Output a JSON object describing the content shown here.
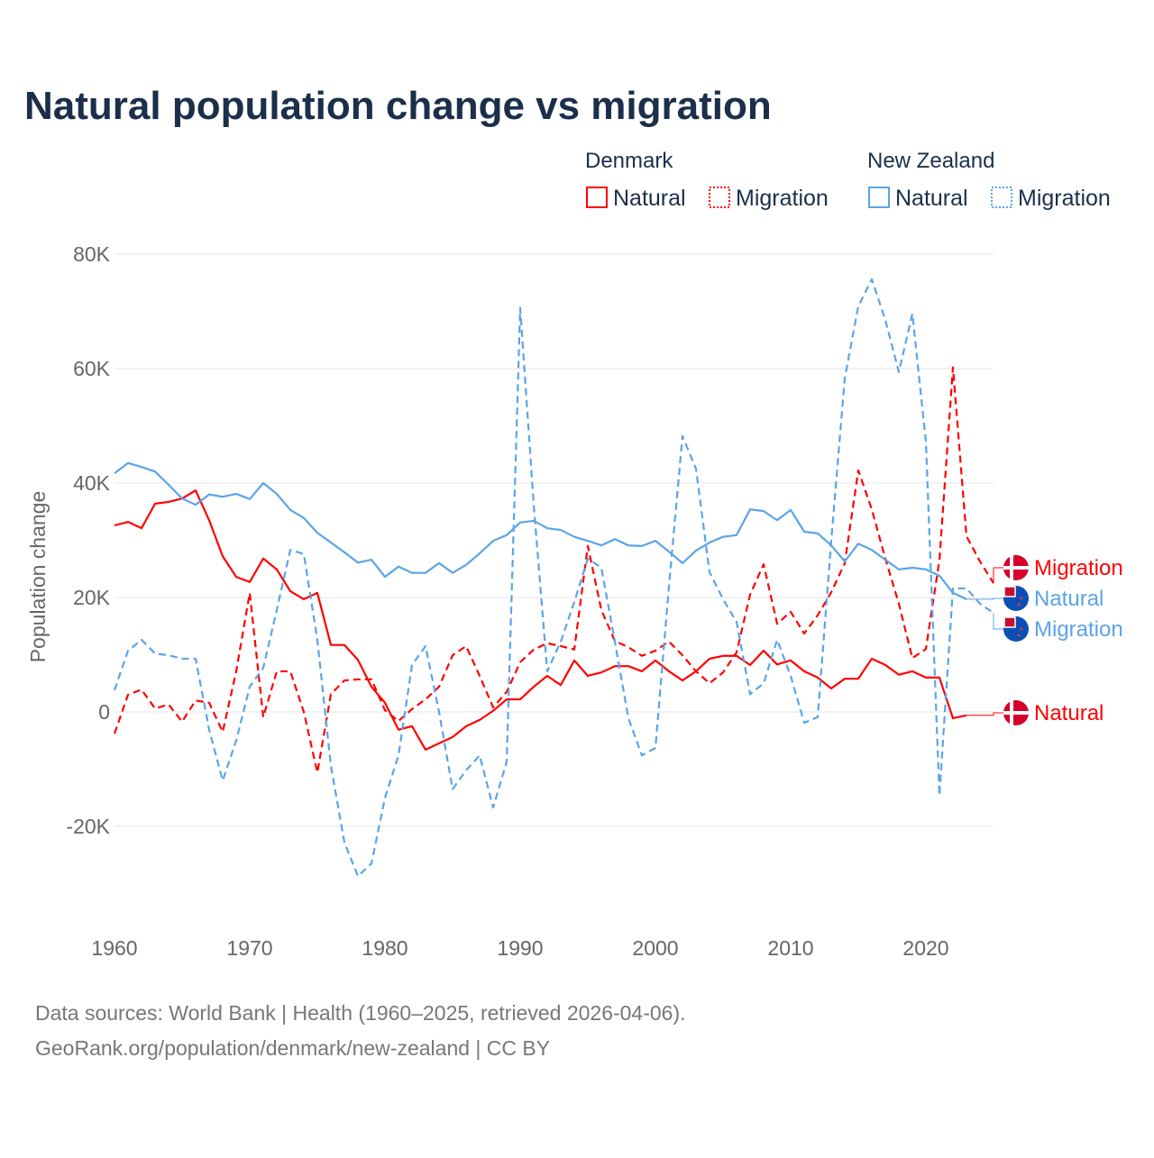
{
  "title": "Natural population change vs migration",
  "legend": {
    "groups": [
      {
        "name": "Denmark",
        "items": [
          "Natural",
          "Migration"
        ],
        "color": "#ff0000"
      },
      {
        "name": "New Zealand",
        "items": [
          "Natural",
          "Migration"
        ],
        "color": "#5ba4e8"
      }
    ]
  },
  "footer": {
    "line1": "Data sources: World Bank | Health (1960–2025, retrieved 2026-04-06).",
    "line2": "GeoRank.org/population/denmark/new-zealand | CC BY"
  },
  "chart_data": {
    "type": "line",
    "title": "Natural population change vs migration",
    "xlabel": "",
    "ylabel": "Population change",
    "xlim": [
      1960,
      2025
    ],
    "ylim": [
      -30000,
      80000
    ],
    "x_ticks": [
      1960,
      1970,
      1980,
      1990,
      2000,
      2010,
      2020
    ],
    "x_tick_labels": [
      "1960",
      "1970",
      "1980",
      "1990",
      "2000",
      "2010",
      "2020"
    ],
    "y_ticks": [
      -20000,
      0,
      20000,
      40000,
      60000,
      80000
    ],
    "y_tick_labels": [
      "-20K",
      "0",
      "20K",
      "40K",
      "60K",
      "80K"
    ],
    "grid": true,
    "legend_position": "top-right",
    "start_year": 1960,
    "series": [
      {
        "name": "Denmark Natural",
        "label": "Natural",
        "country": "Denmark",
        "color": "#ff0000",
        "dashed": false,
        "values": [
          32.6,
          33.2,
          32.1,
          36.4,
          36.7,
          37.3,
          38.7,
          33.5,
          27.2,
          23.6,
          22.7,
          26.8,
          24.9,
          21.1,
          19.7,
          20.8,
          11.7,
          11.7,
          9.1,
          4.4,
          1.6,
          -3.1,
          -2.5,
          -6.6,
          -5.5,
          -4.4,
          -2.5,
          -1.4,
          0.2,
          2.2,
          2.2,
          4.4,
          6.3,
          4.7,
          9.0,
          6.3,
          6.9,
          8.0,
          8.0,
          7.1,
          9.0,
          7.1,
          5.5,
          7.1,
          9.3,
          9.8,
          9.8,
          8.2,
          10.7,
          8.3,
          9.0,
          7.1,
          6.0,
          4.1,
          5.8,
          5.8,
          9.3,
          8.2,
          6.5,
          7.1,
          6.0,
          6.0,
          -1.1,
          -0.6
        ]
      },
      {
        "name": "Denmark Migration",
        "label": "Migration",
        "country": "Denmark",
        "color": "#ff0000",
        "dashed": true,
        "values": [
          -3.8,
          3.0,
          3.9,
          0.6,
          1.3,
          -1.7,
          2.0,
          1.6,
          -3.5,
          7.1,
          20.8,
          -0.9,
          7.1,
          7.1,
          0,
          -10.6,
          3.1,
          5.5,
          5.7,
          5.7,
          0.3,
          -1.6,
          0.5,
          2.2,
          4.4,
          9.9,
          11.5,
          6.3,
          0.8,
          3.5,
          8.7,
          10.9,
          12.0,
          11.5,
          10.9,
          29.0,
          17.8,
          12.4,
          11.3,
          9.8,
          10.7,
          12.3,
          9.9,
          7.1,
          5.0,
          6.9,
          10.4,
          20.5,
          25.8,
          15.4,
          17.5,
          13.7,
          16.9,
          20.9,
          26.0,
          42.2,
          35.4,
          26.8,
          18.9,
          9.4,
          11.0,
          26.5,
          60.2,
          30.7,
          26.3,
          22.5
        ]
      },
      {
        "name": "New Zealand Natural",
        "label": "Natural",
        "country": "New Zealand",
        "color": "#5ba4e8",
        "dashed": false,
        "values": [
          41.7,
          43.5,
          42.8,
          42.0,
          39.7,
          37.3,
          36.2,
          38.0,
          37.6,
          38.1,
          37.2,
          40.0,
          38.1,
          35.3,
          33.9,
          31.3,
          29.6,
          27.9,
          26.1,
          26.6,
          23.6,
          25.4,
          24.3,
          24.3,
          26.0,
          24.3,
          25.7,
          27.7,
          29.9,
          30.9,
          33.1,
          33.4,
          32.1,
          31.8,
          30.6,
          29.9,
          29.1,
          30.2,
          29.1,
          29.0,
          29.9,
          28.0,
          26.0,
          28.2,
          29.6,
          30.6,
          30.9,
          35.4,
          35.1,
          33.5,
          35.3,
          31.5,
          31.2,
          29.1,
          26.3,
          29.4,
          28.3,
          26.6,
          24.9,
          25.2,
          24.9,
          23.8,
          20.8,
          19.7
        ]
      },
      {
        "name": "New Zealand Migration",
        "label": "Migration",
        "country": "New Zealand",
        "color": "#5ba4e8",
        "dashed": true,
        "values": [
          3.8,
          10.7,
          12.6,
          10.2,
          9.9,
          9.3,
          9.3,
          -3.1,
          -12.0,
          -5.0,
          4.4,
          7.7,
          17.8,
          28.3,
          27.6,
          12.6,
          -9.4,
          -22.8,
          -28.7,
          -26.5,
          -15.0,
          -7.6,
          8.2,
          11.5,
          0,
          -13.5,
          -10.2,
          -7.6,
          -16.7,
          -8.7,
          70.6,
          36.2,
          7.1,
          12.3,
          19.2,
          26.8,
          25.2,
          12.3,
          -1.1,
          -7.6,
          -6.3,
          22.0,
          48.2,
          42.5,
          24.4,
          19.7,
          15.7,
          3.1,
          5.0,
          12.6,
          6.3,
          -1.9,
          -0.9,
          29.9,
          58.3,
          70.9,
          75.6,
          68.5,
          59.4,
          69.6,
          47.2,
          -14.6,
          21.6,
          21.6,
          18.9,
          17.3
        ]
      }
    ],
    "value_unit": "thousands"
  }
}
